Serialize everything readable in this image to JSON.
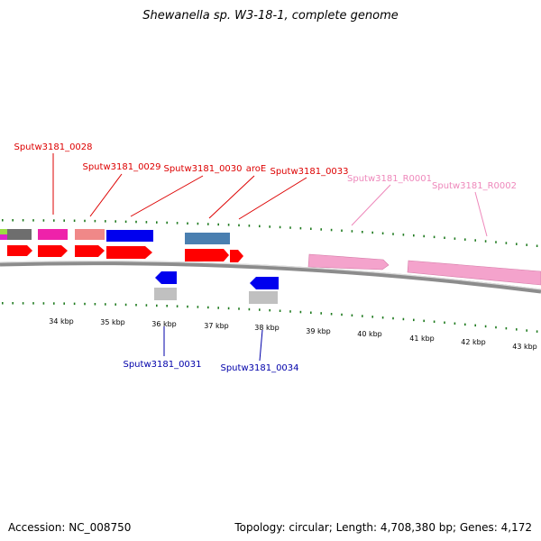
{
  "title": "Shewanella sp. W3-18-1, complete genome",
  "accession_text": "Accession: NC_008750",
  "topology_text": "Topology: circular; Length: 4,708,380 bp; Genes: 4,172",
  "colors": {
    "backbone": "#8c8c8c",
    "ticks": "#1e7a1e",
    "cds_forward": "#ff0000",
    "cds_reverse": "#0000ee",
    "rrna": "#f4a3cc",
    "label_forward": "#dd0000",
    "label_reverse": "#0000aa",
    "label_rna": "#ee88bb"
  },
  "scale_labels": [
    "34 kbp",
    "35 kbp",
    "36 kbp",
    "37 kbp",
    "38 kbp",
    "39 kbp",
    "40 kbp",
    "41 kbp",
    "42 kbp",
    "43 kbp"
  ],
  "gene_labels_forward": [
    "Sputw3181_0028",
    "Sputw3181_0029",
    "Sputw3181_0030",
    "aroE",
    "Sputw3181_0033"
  ],
  "gene_labels_rna": [
    "Sputw3181_R0001",
    "Sputw3181_R0002"
  ],
  "gene_labels_reverse": [
    "Sputw3181_0031",
    "Sputw3181_0034"
  ]
}
